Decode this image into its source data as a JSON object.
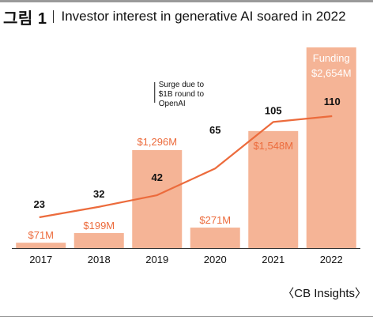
{
  "figure": {
    "label": "그림 1",
    "title": "Investor interest in generative AI soared in 2022",
    "source": "〈CB Insights〉"
  },
  "colors": {
    "bar": "#f5b496",
    "line": "#ec6b3c",
    "bar_label": "#ec6b3c",
    "bar_label_inside": "#ffffff",
    "text": "#111111",
    "axis": "#333333"
  },
  "chart_data": {
    "type": "bar",
    "categories": [
      "2017",
      "2018",
      "2019",
      "2020",
      "2021",
      "2022"
    ],
    "series": [
      {
        "name": "Funding",
        "type": "bar",
        "values": [
          71,
          199,
          1296,
          271,
          1548,
          2654
        ],
        "labels": [
          "$71M",
          "$199M",
          "$1,296M",
          "$271M",
          "$1,548M",
          "$2,654M"
        ]
      },
      {
        "name": "",
        "type": "line",
        "values": [
          23,
          32,
          42,
          65,
          105,
          110
        ],
        "labels": [
          "23",
          "32",
          "42",
          "65",
          "105",
          "110"
        ]
      }
    ],
    "annotations": [
      {
        "category": "2019",
        "lines": [
          "Surge due to",
          "$1B round to",
          "OpenAI"
        ]
      }
    ],
    "grid": false,
    "legend": "none"
  }
}
